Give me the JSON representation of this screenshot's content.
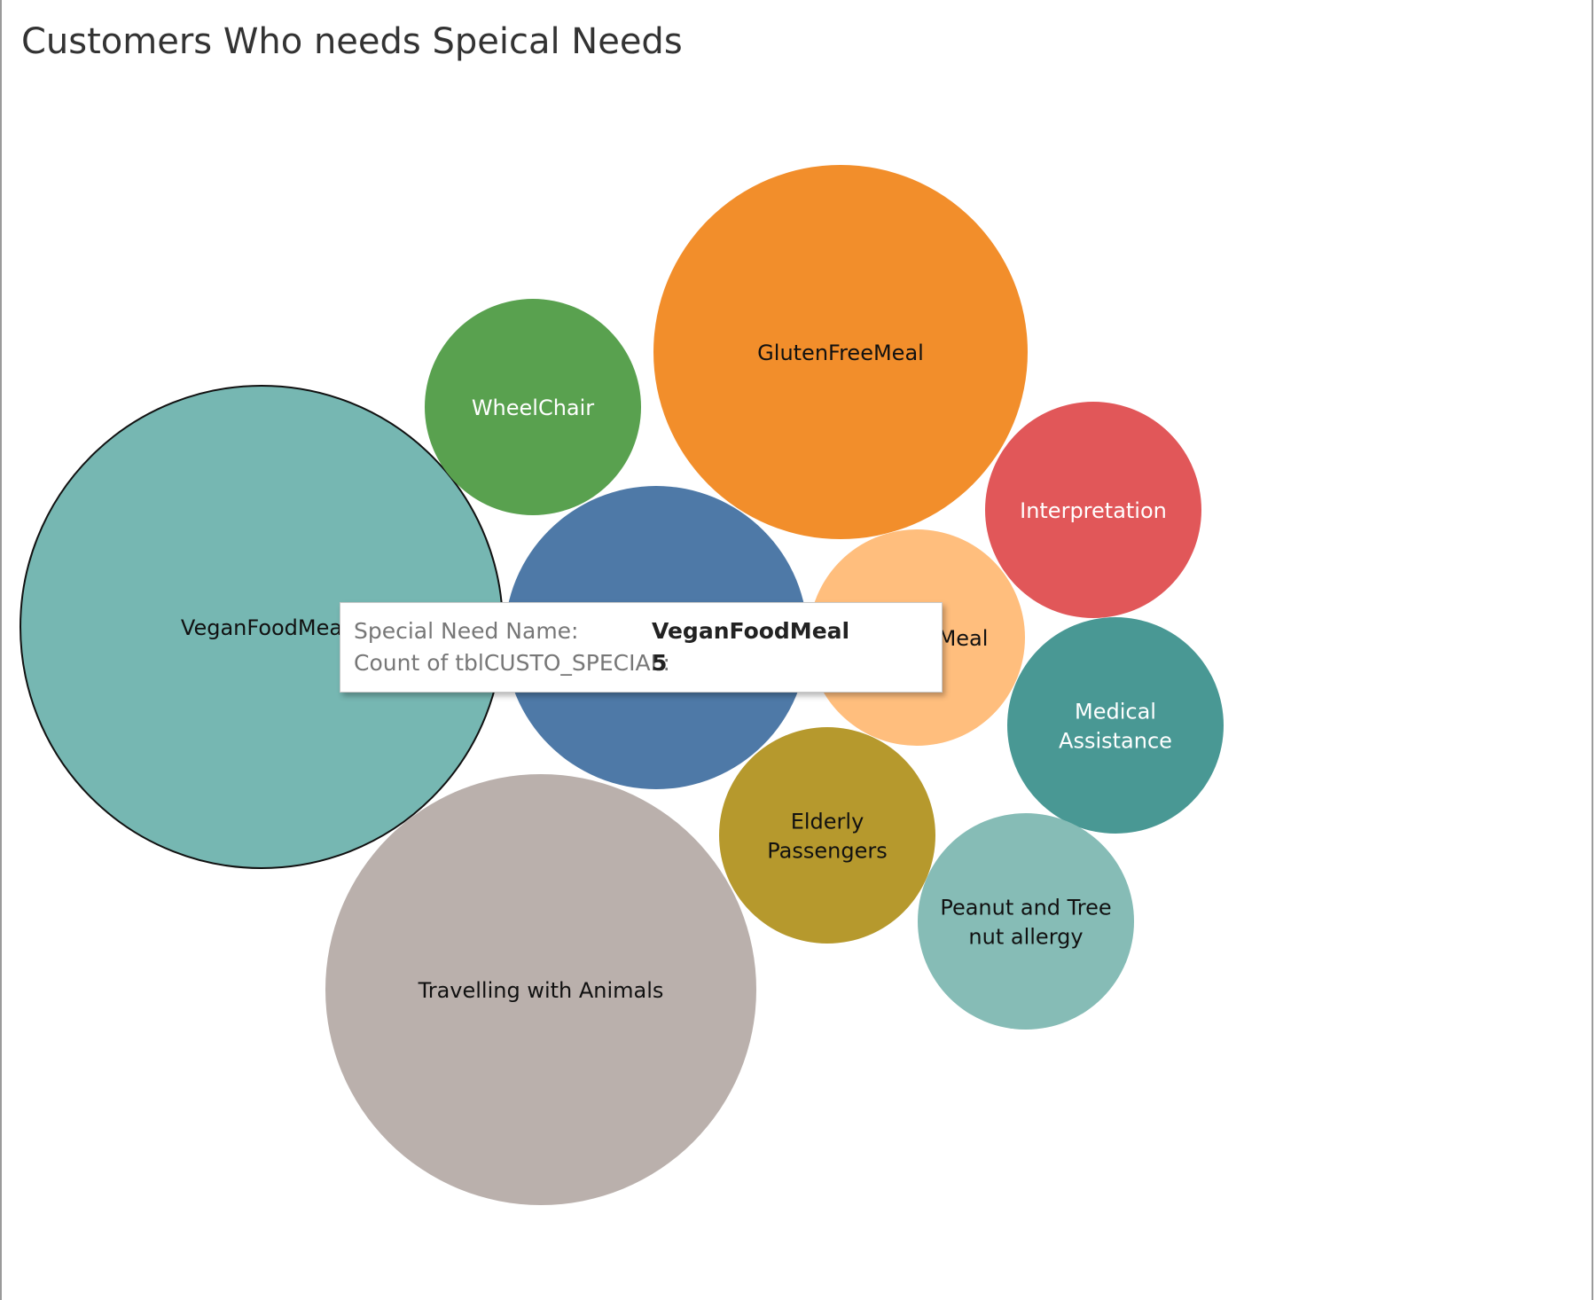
{
  "chart_data": {
    "type": "bubble",
    "title": "Customers Who needs Speical Needs",
    "bubbles": [
      {
        "name": "VeganFoodMeal",
        "label_lines": [
          "VeganFoodMea"
        ],
        "value": 5,
        "color": "#76b7b2",
        "label_color": "#111111",
        "selected": true
      },
      {
        "name": "Travelling with Animals",
        "label_lines": [
          "Travelling with Animals"
        ],
        "color": "#bab0ac",
        "label_color": "#111111"
      },
      {
        "name": "GlutenFreeMeal",
        "label_lines": [
          "GlutenFreeMeal"
        ],
        "color": "#f28e2b",
        "label_color": "#111111"
      },
      {
        "name": "",
        "label_lines": [],
        "color": "#4e79a7",
        "label_color": "#ffffff"
      },
      {
        "name": "WheelChair",
        "label_lines": [
          "WheelChair"
        ],
        "color": "#59a14f",
        "label_color": "#ffffff"
      },
      {
        "name": "Interpretation",
        "label_lines": [
          "Interpretation"
        ],
        "color": "#e15759",
        "label_color": "#ffffff"
      },
      {
        "name": "Meal",
        "label_lines": [
          "Meal"
        ],
        "color": "#ffbe7d",
        "label_color": "#111111"
      },
      {
        "name": "Medical Assistance",
        "label_lines": [
          "Medical",
          "Assistance"
        ],
        "color": "#499894",
        "label_color": "#ffffff"
      },
      {
        "name": "Elderly Passengers",
        "label_lines": [
          "Elderly",
          "Passengers"
        ],
        "color": "#b6992d",
        "label_color": "#111111"
      },
      {
        "name": "Peanut and Tree nut allergy",
        "label_lines": [
          "Peanut and Tree",
          "nut allergy"
        ],
        "color": "#86bcb6",
        "label_color": "#111111"
      }
    ]
  },
  "tooltip": {
    "rows": [
      {
        "label": "Special Need Name:",
        "value": "VeganFoodMeal"
      },
      {
        "label": "Count of tblCUSTO_SPECIAL:",
        "value": "5"
      }
    ]
  }
}
